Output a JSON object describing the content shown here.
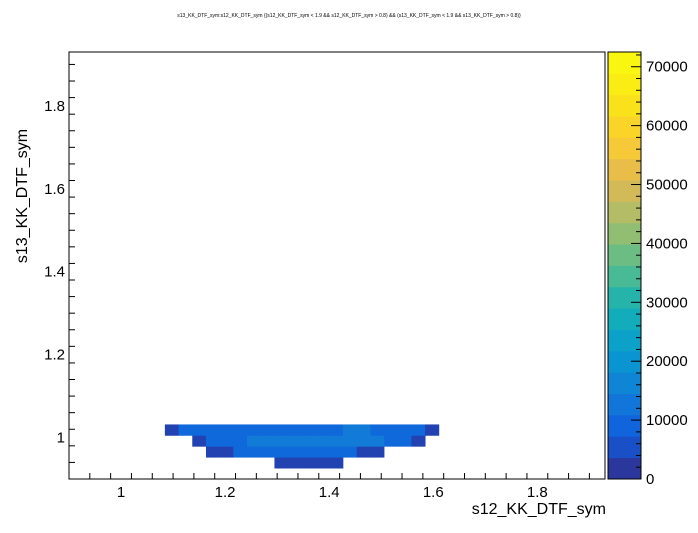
{
  "chart_data": {
    "type": "heatmap",
    "title": "s13_KK_DTF_sym:s12_KK_DTF_sym {(s12_KK_DTF_sym < 1.9 && s12_KK_DTF_sym > 0.8) && (s13_KK_DTF_sym < 1.9 && s13_KK_DTF_sym > 0.8)}",
    "xlabel": "s12_KK_DTF_sym",
    "ylabel": "s13_KK_DTF_sym",
    "xlim": [
      0.9,
      1.93
    ],
    "ylim": [
      0.9,
      1.93
    ],
    "x_ticks": [
      "1",
      "1.2",
      "1.4",
      "1.6",
      "1.8"
    ],
    "y_ticks": [
      "1",
      "1.2",
      "1.4",
      "1.6",
      "1.8"
    ],
    "z_ticks": [
      "0",
      "10000",
      "20000",
      "30000",
      "40000",
      "50000",
      "60000",
      "70000"
    ],
    "zlim": [
      0,
      72500
    ],
    "bin_width": 0.02632,
    "x_start": 0.9,
    "y_start": 0.9,
    "bins": [
      [
        15,
        1,
        3500
      ],
      [
        16,
        1,
        3500
      ],
      [
        17,
        1,
        3500
      ],
      [
        18,
        1,
        3500
      ],
      [
        19,
        1,
        3500
      ],
      [
        10,
        2,
        3500
      ],
      [
        11,
        2,
        3500
      ],
      [
        12,
        2,
        10000
      ],
      [
        13,
        2,
        10000
      ],
      [
        14,
        2,
        10000
      ],
      [
        15,
        2,
        10000
      ],
      [
        16,
        2,
        10000
      ],
      [
        17,
        2,
        10000
      ],
      [
        18,
        2,
        10000
      ],
      [
        19,
        2,
        10000
      ],
      [
        20,
        2,
        10000
      ],
      [
        21,
        2,
        3500
      ],
      [
        22,
        2,
        3500
      ],
      [
        9,
        3,
        3500
      ],
      [
        10,
        3,
        10000
      ],
      [
        11,
        3,
        10000
      ],
      [
        12,
        3,
        10000
      ],
      [
        13,
        3,
        14000
      ],
      [
        14,
        3,
        14000
      ],
      [
        15,
        3,
        14000
      ],
      [
        16,
        3,
        14000
      ],
      [
        17,
        3,
        14000
      ],
      [
        18,
        3,
        14000
      ],
      [
        19,
        3,
        14000
      ],
      [
        20,
        3,
        14000
      ],
      [
        21,
        3,
        14000
      ],
      [
        22,
        3,
        14000
      ],
      [
        23,
        3,
        10000
      ],
      [
        24,
        3,
        10000
      ],
      [
        25,
        3,
        3500
      ],
      [
        7,
        4,
        3500
      ],
      [
        8,
        4,
        10000
      ],
      [
        9,
        4,
        10000
      ],
      [
        10,
        4,
        10000
      ],
      [
        11,
        4,
        10000
      ],
      [
        12,
        4,
        10000
      ],
      [
        13,
        4,
        10000
      ],
      [
        14,
        4,
        10000
      ],
      [
        15,
        4,
        10000
      ],
      [
        16,
        4,
        10000
      ],
      [
        17,
        4,
        10000
      ],
      [
        18,
        4,
        10000
      ],
      [
        19,
        4,
        10000
      ],
      [
        20,
        4,
        14000
      ],
      [
        21,
        4,
        14000
      ],
      [
        22,
        4,
        10000
      ],
      [
        23,
        4,
        10000
      ],
      [
        24,
        4,
        10000
      ],
      [
        25,
        4,
        10000
      ],
      [
        26,
        4,
        3500
      ]
    ]
  }
}
